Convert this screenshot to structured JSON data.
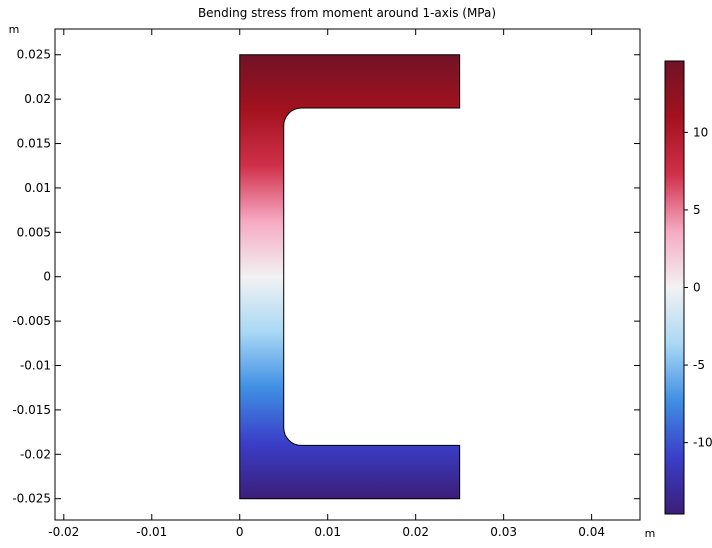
{
  "chart_data": {
    "type": "heatmap",
    "title": "Bending stress from moment around 1-axis (MPa)",
    "xlabel": "m",
    "ylabel": "m",
    "xlim": [
      -0.021,
      0.0455
    ],
    "ylim": [
      -0.0274,
      0.0279
    ],
    "x_ticks": [
      -0.02,
      -0.01,
      0,
      0.01,
      0.02,
      0.03,
      0.04
    ],
    "x_tick_labels": [
      "-0.02",
      "-0.01",
      "0",
      "0.01",
      "0.02",
      "0.03",
      "0.04"
    ],
    "y_ticks": [
      0.025,
      0.02,
      0.015,
      0.01,
      0.005,
      0,
      -0.005,
      -0.01,
      -0.015,
      -0.02,
      -0.025
    ],
    "y_tick_labels": [
      "0.025",
      "0.02",
      "0.015",
      "0.01",
      "0.005",
      "0",
      "-0.005",
      "-0.01",
      "-0.015",
      "-0.02",
      "-0.025"
    ],
    "shape": {
      "name": "C-channel cross-section",
      "x_min": 0,
      "x_max": 0.025,
      "y_min": -0.025,
      "y_max": 0.025,
      "web_thickness": 0.005,
      "flange_thickness": 0.006,
      "fillet_radius": 0.002
    },
    "field": {
      "quantity": "bending stress",
      "units": "MPa",
      "distribution": "linear in y",
      "value_at_y_min": -14.6,
      "value_at_y_max": 14.6
    },
    "colorbar": {
      "min": -14.6,
      "max": 14.6,
      "ticks": [
        10,
        5,
        0,
        -5,
        -10
      ],
      "tick_labels": [
        "10",
        "5",
        "0",
        "-5",
        "-10"
      ],
      "colors": [
        "#3b1e78",
        "#3a3ec8",
        "#3f8fe4",
        "#a9d8f5",
        "#f2f2f2",
        "#f6a9c2",
        "#d0304a",
        "#a3121e",
        "#711226"
      ]
    },
    "grid": false,
    "legend": "colorbar-right"
  }
}
